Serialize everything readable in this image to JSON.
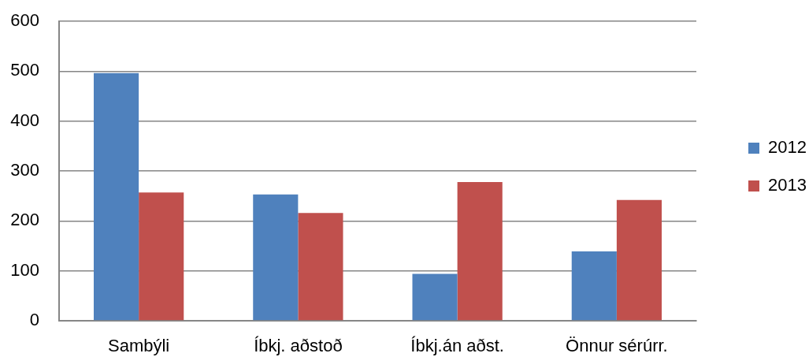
{
  "chart_data": {
    "type": "bar",
    "categories": [
      "Sambýli",
      "Íbkj. aðstoð",
      "Íbkj.án aðst.",
      "Önnur sérúrr."
    ],
    "series": [
      {
        "name": "2012",
        "color": "#4f81bd",
        "values": [
          496,
          253,
          94,
          139
        ]
      },
      {
        "name": "2013",
        "color": "#c0504d",
        "values": [
          257,
          216,
          278,
          242
        ]
      }
    ],
    "ylim": [
      0,
      600
    ],
    "yticks": [
      0,
      100,
      200,
      300,
      400,
      500,
      600
    ],
    "grid": "y",
    "legend": "right"
  }
}
